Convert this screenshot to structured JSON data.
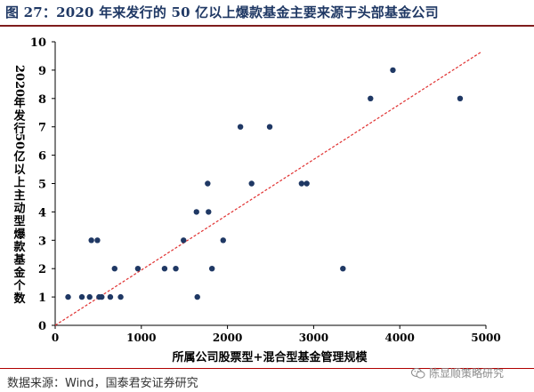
{
  "header": {
    "title": "图 27：2020 年来发行的 50 亿以上爆款基金主要来源于头部基金公司"
  },
  "footer": {
    "source": "数据来源：Wind，国泰君安证券研究",
    "watermark": "陈显顺策略研究",
    "watermark_icon": "wechat-icon"
  },
  "colors": {
    "point": "#1f3864",
    "trendline": "#e03030",
    "title": "#1f3864",
    "rule": "#7f1d1d"
  },
  "chart_data": {
    "type": "scatter",
    "xlabel": "所属公司股票型+混合型基金管理规模",
    "ylabel": "2020年发行50亿以上主动型爆款基金个数",
    "xlim": [
      0,
      5000
    ],
    "ylim": [
      0,
      10
    ],
    "xticks": [
      0,
      1000,
      2000,
      3000,
      4000,
      5000
    ],
    "yticks": [
      0,
      1,
      2,
      3,
      4,
      5,
      6,
      7,
      8,
      9,
      10
    ],
    "grid": false,
    "legend": "none",
    "trendline": {
      "style": "dashed",
      "x": [
        0,
        4950
      ],
      "y": [
        0,
        9.65
      ]
    },
    "points": [
      {
        "x": 150,
        "y": 1
      },
      {
        "x": 310,
        "y": 1
      },
      {
        "x": 400,
        "y": 1
      },
      {
        "x": 510,
        "y": 1
      },
      {
        "x": 540,
        "y": 1
      },
      {
        "x": 640,
        "y": 1
      },
      {
        "x": 760,
        "y": 1
      },
      {
        "x": 1650,
        "y": 1
      },
      {
        "x": 420,
        "y": 3
      },
      {
        "x": 490,
        "y": 3
      },
      {
        "x": 690,
        "y": 2
      },
      {
        "x": 960,
        "y": 2
      },
      {
        "x": 1270,
        "y": 2
      },
      {
        "x": 1400,
        "y": 2
      },
      {
        "x": 1490,
        "y": 3
      },
      {
        "x": 1640,
        "y": 4
      },
      {
        "x": 1770,
        "y": 5
      },
      {
        "x": 1780,
        "y": 4
      },
      {
        "x": 1820,
        "y": 2
      },
      {
        "x": 1950,
        "y": 3
      },
      {
        "x": 2150,
        "y": 7
      },
      {
        "x": 2280,
        "y": 5
      },
      {
        "x": 2490,
        "y": 7
      },
      {
        "x": 2860,
        "y": 5
      },
      {
        "x": 2920,
        "y": 5
      },
      {
        "x": 3340,
        "y": 2
      },
      {
        "x": 3660,
        "y": 8
      },
      {
        "x": 3920,
        "y": 9
      },
      {
        "x": 4700,
        "y": 8
      }
    ]
  }
}
